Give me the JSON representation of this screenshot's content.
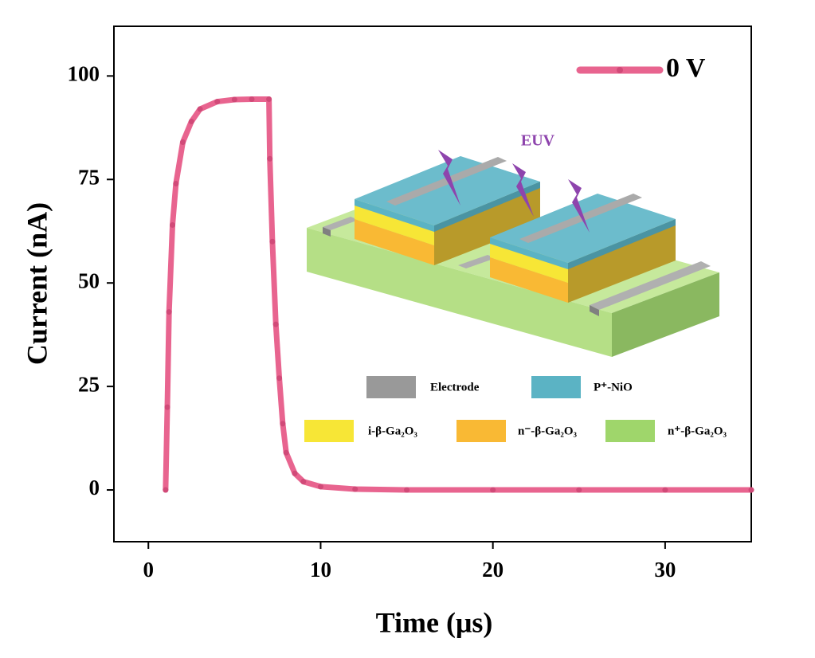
{
  "chart_data": {
    "type": "line",
    "x_label": "Time (μs)",
    "y_label": "Current (nA)",
    "x": [
      1,
      1.1,
      1.2,
      1.4,
      1.6,
      2,
      2.5,
      3,
      4,
      5,
      6,
      7,
      7.05,
      7.2,
      7.4,
      7.6,
      7.8,
      8,
      8.5,
      9,
      10,
      12,
      15,
      20,
      25,
      30,
      35
    ],
    "series": [
      {
        "name": "0 V",
        "color": "#e8648f",
        "values": [
          0,
          20,
          43,
          64,
          74,
          84,
          89,
          92,
          93.8,
          94.3,
          94.4,
          94.4,
          80,
          60,
          40,
          27,
          16,
          9,
          4,
          2,
          0.8,
          0.2,
          0,
          0,
          0,
          0,
          0
        ]
      }
    ],
    "xlim": [
      -2,
      35
    ],
    "xticks": [
      0,
      10,
      20,
      30
    ],
    "ylim": [
      -12.5,
      112
    ],
    "yticks": [
      0,
      25,
      50,
      75,
      100
    ],
    "legend": "top-right",
    "inset": {
      "annotation": "EUV",
      "legend": [
        "Electrode",
        "P⁺-NiO",
        "i-β-Ga₂O₃",
        "n⁻-β-Ga₂O₃",
        "n⁺-β-Ga₂O₃"
      ],
      "colors": [
        "#999999",
        "#5bb3c4",
        "#f7e636",
        "#f9b934",
        "#9fd66b"
      ]
    }
  }
}
